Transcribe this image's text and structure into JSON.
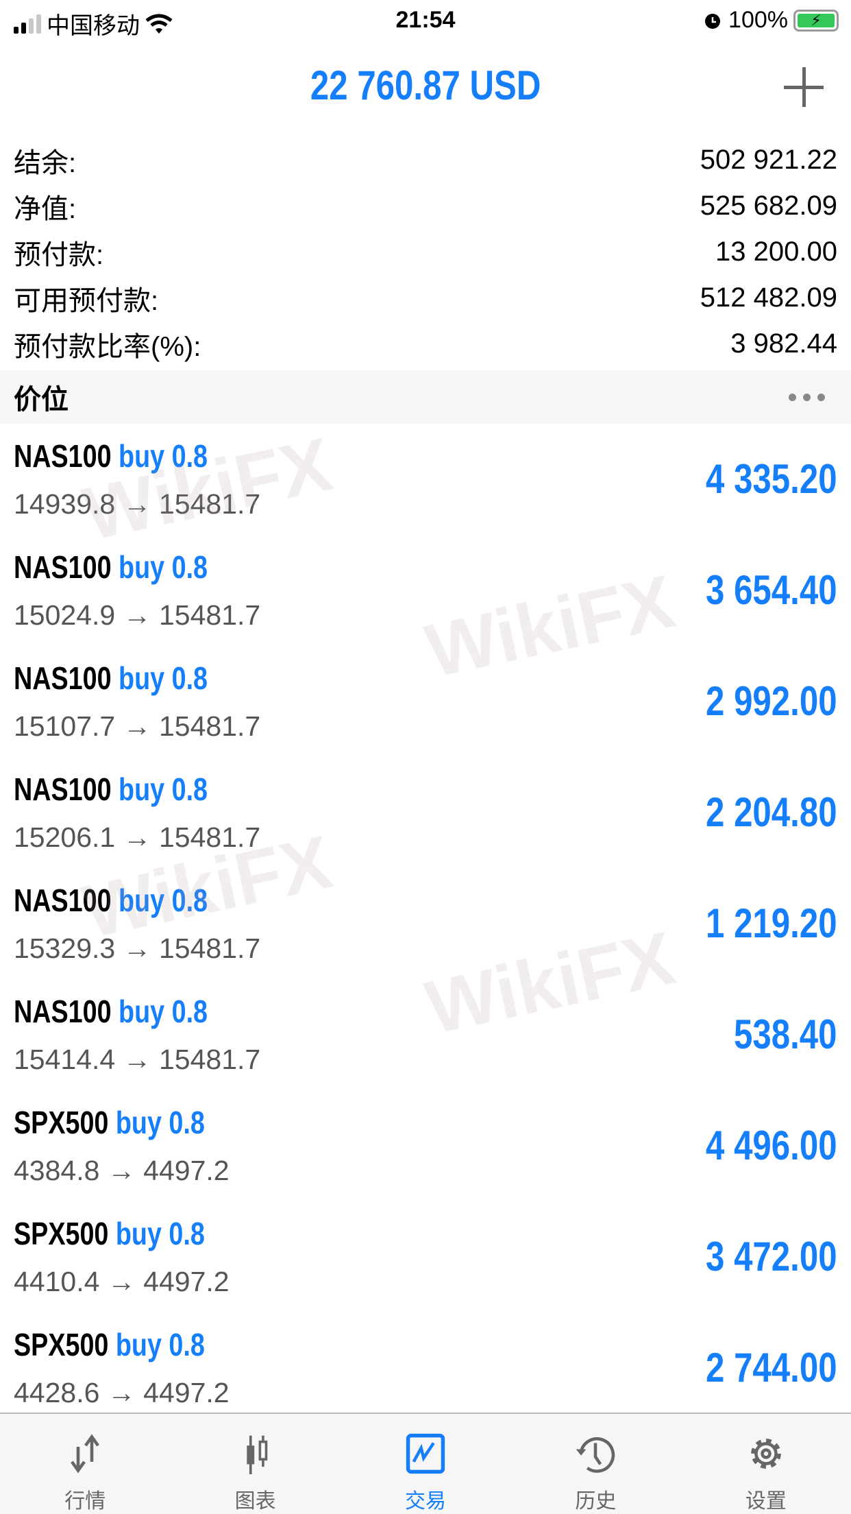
{
  "status_bar": {
    "carrier": "中国移动",
    "time": "21:54",
    "battery": "100%"
  },
  "header": {
    "title": "22 760.87 USD",
    "add_icon": "plus-icon"
  },
  "summary": [
    {
      "label": "结余:",
      "value": "502 921.22"
    },
    {
      "label": "净值:",
      "value": "525 682.09"
    },
    {
      "label": "预付款:",
      "value": "13 200.00"
    },
    {
      "label": "可用预付款:",
      "value": "512 482.09"
    },
    {
      "label": "预付款比率(%):",
      "value": "3 982.44"
    }
  ],
  "section": {
    "title": "价位",
    "more_icon": "ellipsis-icon"
  },
  "positions": [
    {
      "symbol": "NAS100",
      "side": "buy 0.8",
      "prices": "14939.8 → 15481.7",
      "profit": "4 335.20"
    },
    {
      "symbol": "NAS100",
      "side": "buy 0.8",
      "prices": "15024.9 → 15481.7",
      "profit": "3 654.40"
    },
    {
      "symbol": "NAS100",
      "side": "buy 0.8",
      "prices": "15107.7 → 15481.7",
      "profit": "2 992.00"
    },
    {
      "symbol": "NAS100",
      "side": "buy 0.8",
      "prices": "15206.1 → 15481.7",
      "profit": "2 204.80"
    },
    {
      "symbol": "NAS100",
      "side": "buy 0.8",
      "prices": "15329.3 → 15481.7",
      "profit": "1 219.20"
    },
    {
      "symbol": "NAS100",
      "side": "buy 0.8",
      "prices": "15414.4 → 15481.7",
      "profit": "538.40"
    },
    {
      "symbol": "SPX500",
      "side": "buy 0.8",
      "prices": "4384.8 → 4497.2",
      "profit": "4 496.00"
    },
    {
      "symbol": "SPX500",
      "side": "buy 0.8",
      "prices": "4410.4 → 4497.2",
      "profit": "3 472.00"
    },
    {
      "symbol": "SPX500",
      "side": "buy 0.8",
      "prices": "4428.6 → 4497.2",
      "profit": "2 744.00"
    }
  ],
  "watermark": "WikiFX",
  "tabs": [
    {
      "label": "行情",
      "icon": "quotes-arrows-icon"
    },
    {
      "label": "图表",
      "icon": "candlestick-icon"
    },
    {
      "label": "交易",
      "icon": "trade-chart-icon",
      "active": true
    },
    {
      "label": "历史",
      "icon": "history-clock-icon"
    },
    {
      "label": "设置",
      "icon": "gear-icon"
    }
  ],
  "colors": {
    "accent": "#157efb",
    "icon_gray": "#666666",
    "battery": "#34c759"
  }
}
